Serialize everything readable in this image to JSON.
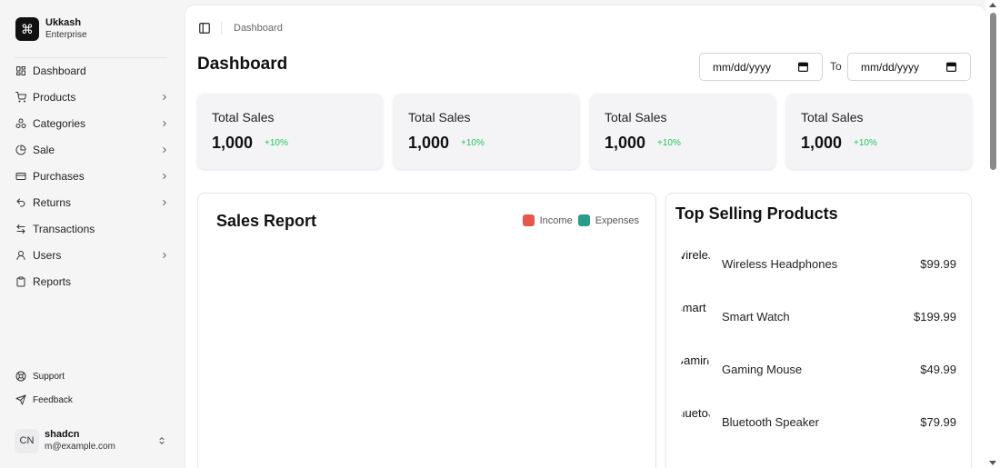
{
  "brand": {
    "name": "Ukkash",
    "subtitle": "Enterprise",
    "logo_glyph": "⌘"
  },
  "nav": [
    {
      "label": "Dashboard",
      "icon": "dashboard-icon",
      "has_children": false
    },
    {
      "label": "Products",
      "icon": "cart-icon",
      "has_children": true
    },
    {
      "label": "Categories",
      "icon": "shapes-icon",
      "has_children": true
    },
    {
      "label": "Sale",
      "icon": "pie-chart-icon",
      "has_children": true
    },
    {
      "label": "Purchases",
      "icon": "credit-card-icon",
      "has_children": true
    },
    {
      "label": "Returns",
      "icon": "undo-icon",
      "has_children": true
    },
    {
      "label": "Transactions",
      "icon": "arrows-left-right-icon",
      "has_children": false
    },
    {
      "label": "Users",
      "icon": "user-icon",
      "has_children": true
    },
    {
      "label": "Reports",
      "icon": "clipboard-icon",
      "has_children": false
    }
  ],
  "secondary": [
    {
      "label": "Support",
      "icon": "life-buoy-icon"
    },
    {
      "label": "Feedback",
      "icon": "send-icon"
    }
  ],
  "user": {
    "initials": "CN",
    "name": "shadcn",
    "email": "m@example.com"
  },
  "header": {
    "breadcrumb": "Dashboard"
  },
  "page": {
    "title": "Dashboard"
  },
  "date_range": {
    "from_placeholder": "mm/dd/yyyy",
    "to_label": "To",
    "to_placeholder": "mm/dd/yyyy"
  },
  "stats": [
    {
      "label": "Total Sales",
      "value": "1,000",
      "change": "+10%"
    },
    {
      "label": "Total Sales",
      "value": "1,000",
      "change": "+10%"
    },
    {
      "label": "Total Sales",
      "value": "1,000",
      "change": "+10%"
    },
    {
      "label": "Total Sales",
      "value": "1,000",
      "change": "+10%"
    }
  ],
  "sales_report": {
    "title": "Sales Report",
    "legend": [
      {
        "label": "Income",
        "color": "#e5574b"
      },
      {
        "label": "Expenses",
        "color": "#2a9d8a"
      }
    ]
  },
  "top_selling": {
    "title": "Top Selling Products",
    "products": [
      {
        "image_alt": "Wireless Headphones",
        "name": "Wireless Headphones",
        "price": "$99.99"
      },
      {
        "image_alt": "Smart Watch",
        "name": "Smart Watch",
        "price": "$199.99"
      },
      {
        "image_alt": "Gaming Mouse",
        "name": "Gaming Mouse",
        "price": "$49.99"
      },
      {
        "image_alt": "Bluetooth Speaker",
        "name": "Bluetooth Speaker",
        "price": "$79.99"
      }
    ]
  },
  "colors": {
    "accent_positive": "#22c55e",
    "sidebar_bg": "#f5f5f6",
    "brand_logo_bg": "#111111"
  }
}
